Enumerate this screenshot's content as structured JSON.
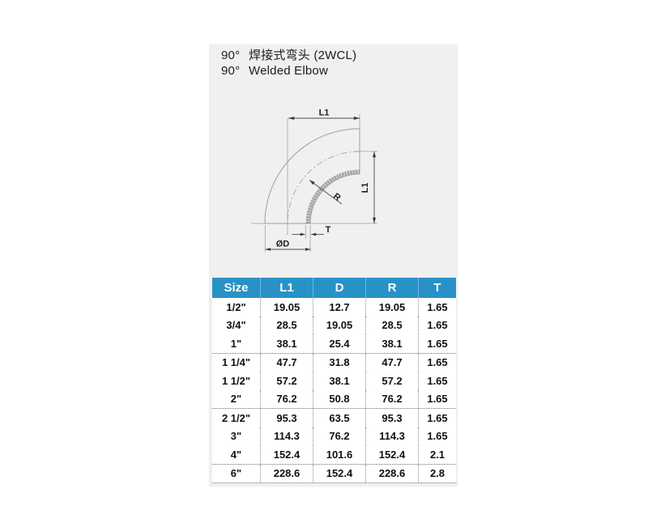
{
  "title": {
    "line1_prefix": "90°",
    "line1_text": "焊接式弯头 (2WCL)",
    "line2_prefix": "90°",
    "line2_text": "Welded Elbow"
  },
  "diagram": {
    "dim_l1_top": "L1",
    "dim_l1_right": "L1",
    "dim_r": "R",
    "dim_t": "T",
    "dim_od": "ØD"
  },
  "table": {
    "headers": [
      "Size",
      "L1",
      "D",
      "R",
      "T"
    ],
    "groups": [
      {
        "rows": [
          [
            "1/2\"",
            "19.05",
            "12.7",
            "19.05",
            "1.65"
          ],
          [
            "3/4\"",
            "28.5",
            "19.05",
            "28.5",
            "1.65"
          ],
          [
            "1\"",
            "38.1",
            "25.4",
            "38.1",
            "1.65"
          ]
        ]
      },
      {
        "rows": [
          [
            "1 1/4\"",
            "47.7",
            "31.8",
            "47.7",
            "1.65"
          ],
          [
            "1 1/2\"",
            "57.2",
            "38.1",
            "57.2",
            "1.65"
          ],
          [
            "2\"",
            "76.2",
            "50.8",
            "76.2",
            "1.65"
          ]
        ]
      },
      {
        "rows": [
          [
            "2 1/2\"",
            "95.3",
            "63.5",
            "95.3",
            "1.65"
          ],
          [
            "3\"",
            "114.3",
            "76.2",
            "114.3",
            "1.65"
          ],
          [
            "4\"",
            "152.4",
            "101.6",
            "152.4",
            "2.1"
          ]
        ]
      },
      {
        "rows": [
          [
            "6\"",
            "228.6",
            "152.4",
            "228.6",
            "2.8"
          ]
        ]
      }
    ]
  },
  "colors": {
    "header_bg": "#2892c6",
    "panel_bg": "#f0f0f1",
    "line_gray": "#9aa0a2"
  }
}
